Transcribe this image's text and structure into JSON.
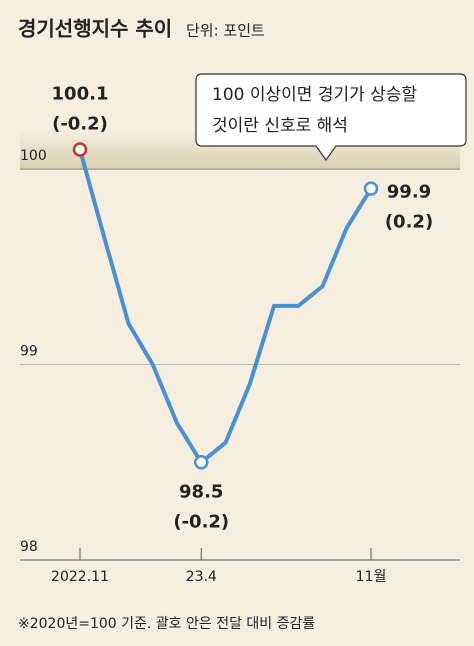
{
  "chart_data": {
    "type": "line",
    "title": "경기선행지수 추이",
    "subtitle": "단위: 포인트",
    "categories": [
      "2022.11",
      null,
      null,
      null,
      null,
      "23.4",
      null,
      null,
      null,
      null,
      null,
      null,
      "11월"
    ],
    "series": [
      {
        "color": "#4a90d4",
        "values": [
          100.1,
          99.65,
          99.21,
          99.0,
          98.7,
          98.5,
          98.6,
          98.9,
          99.3,
          99.3,
          99.4,
          99.7,
          99.9
        ]
      }
    ],
    "change_labels": [
      "(-0.2)",
      null,
      null,
      null,
      null,
      "(-0.2)",
      null,
      null,
      null,
      null,
      null,
      null,
      "(0.2)"
    ],
    "ylim": [
      98,
      100.2
    ],
    "yticks": [
      98,
      99,
      100
    ],
    "callout": [
      "100 이상이면 경기가 상승할",
      "것이란 신호로 해석"
    ],
    "footnote": "※2020년=100 기준. 괄호 안은 전달 대비 증감률"
  }
}
